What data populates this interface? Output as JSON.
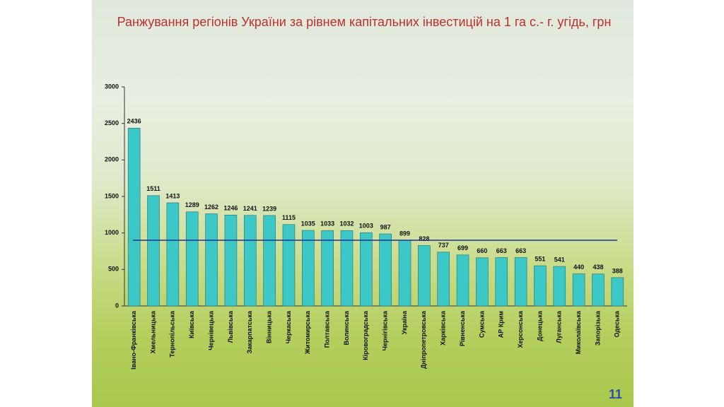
{
  "chart_data": {
    "type": "bar",
    "title": "Ранжування регіонів України за рівнем капітальних інвестицій на 1 га с.- г. угідь, грн",
    "categories": [
      "Івано-Франківська",
      "Хмельницька",
      "Тернопільська",
      "Київська",
      "Чернівецька",
      "Львівська",
      "Закарпатська",
      "Вінницька",
      "Черкаська",
      "Житомирська",
      "Полтавська",
      "Волинська",
      "Кіровоградська",
      "Чернігівська",
      "Україна",
      "Дніпропетровська",
      "Харківська",
      "Рівненська",
      "Сумська",
      "АР Крим",
      "Херсонська",
      "Донецька",
      "Луганська",
      "Миколаївська",
      "Запорізька",
      "Одеська"
    ],
    "values": [
      2436,
      1511,
      1413,
      1289,
      1262,
      1246,
      1241,
      1239,
      1115,
      1035,
      1033,
      1032,
      1003,
      987,
      899,
      828,
      737,
      699,
      660,
      663,
      663,
      551,
      541,
      440,
      438,
      388
    ],
    "color": "#3cc8c6",
    "ylim": [
      0,
      3000
    ],
    "yticks": [
      0,
      500,
      1000,
      1500,
      2000,
      2500,
      3000
    ],
    "reference_line": {
      "value": 900,
      "color": "#22338f"
    }
  },
  "slide": {
    "page_number": "11"
  }
}
